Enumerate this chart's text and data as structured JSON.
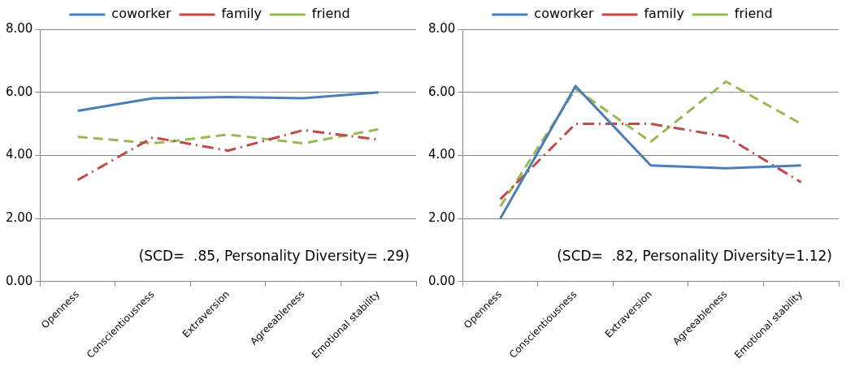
{
  "chart_data": [
    {
      "type": "line",
      "categories": [
        "Openness",
        "Conscientiousness",
        "Extraversion",
        "Agreeableness",
        "Emotional stability"
      ],
      "series": [
        {
          "name": "coworker",
          "color": "#4a7ebb",
          "line_style": "solid",
          "values": [
            5.41,
            5.81,
            5.85,
            5.81,
            6.0
          ]
        },
        {
          "name": "family",
          "color": "#be4b48",
          "line_style": "dashdot",
          "values": [
            3.22,
            4.57,
            4.15,
            4.8,
            4.5
          ]
        },
        {
          "name": "friend",
          "color": "#98b954",
          "line_style": "dashed",
          "values": [
            4.59,
            4.38,
            4.66,
            4.38,
            4.83
          ]
        }
      ],
      "ylim": [
        0,
        8
      ],
      "yticks": [
        {
          "value": 0,
          "label": "0.00"
        },
        {
          "value": 2,
          "label": "2.00"
        },
        {
          "value": 4,
          "label": "4.00"
        },
        {
          "value": 6,
          "label": "6.00"
        },
        {
          "value": 8,
          "label": "8.00"
        }
      ],
      "grid": "y",
      "legend": "top",
      "marker": "none",
      "annotations": [
        "(SCD=  .85, Personality Diversity= .29)"
      ]
    },
    {
      "type": "line",
      "categories": [
        "Openness",
        "Conscientiousness",
        "Extraversion",
        "Agreeableness",
        "Emotional stability"
      ],
      "series": [
        {
          "name": "coworker",
          "color": "#4a7ebb",
          "line_style": "solid",
          "values": [
            2.0,
            6.2,
            3.68,
            3.59,
            3.68
          ]
        },
        {
          "name": "family",
          "color": "#be4b48",
          "line_style": "dashdot",
          "values": [
            2.61,
            5.0,
            5.0,
            4.6,
            3.15
          ]
        },
        {
          "name": "friend",
          "color": "#98b954",
          "line_style": "dashed",
          "values": [
            2.38,
            6.11,
            4.43,
            6.34,
            5.0
          ]
        }
      ],
      "ylim": [
        0,
        8
      ],
      "yticks": [
        {
          "value": 0,
          "label": "0.00"
        },
        {
          "value": 2,
          "label": "2.00"
        },
        {
          "value": 4,
          "label": "4.00"
        },
        {
          "value": 6,
          "label": "6.00"
        },
        {
          "value": 8,
          "label": "8.00"
        }
      ],
      "grid": "y",
      "legend": "top",
      "marker": "none",
      "annotations": [
        "(SCD=  .82, Personality Diversity=1.12)"
      ]
    }
  ]
}
